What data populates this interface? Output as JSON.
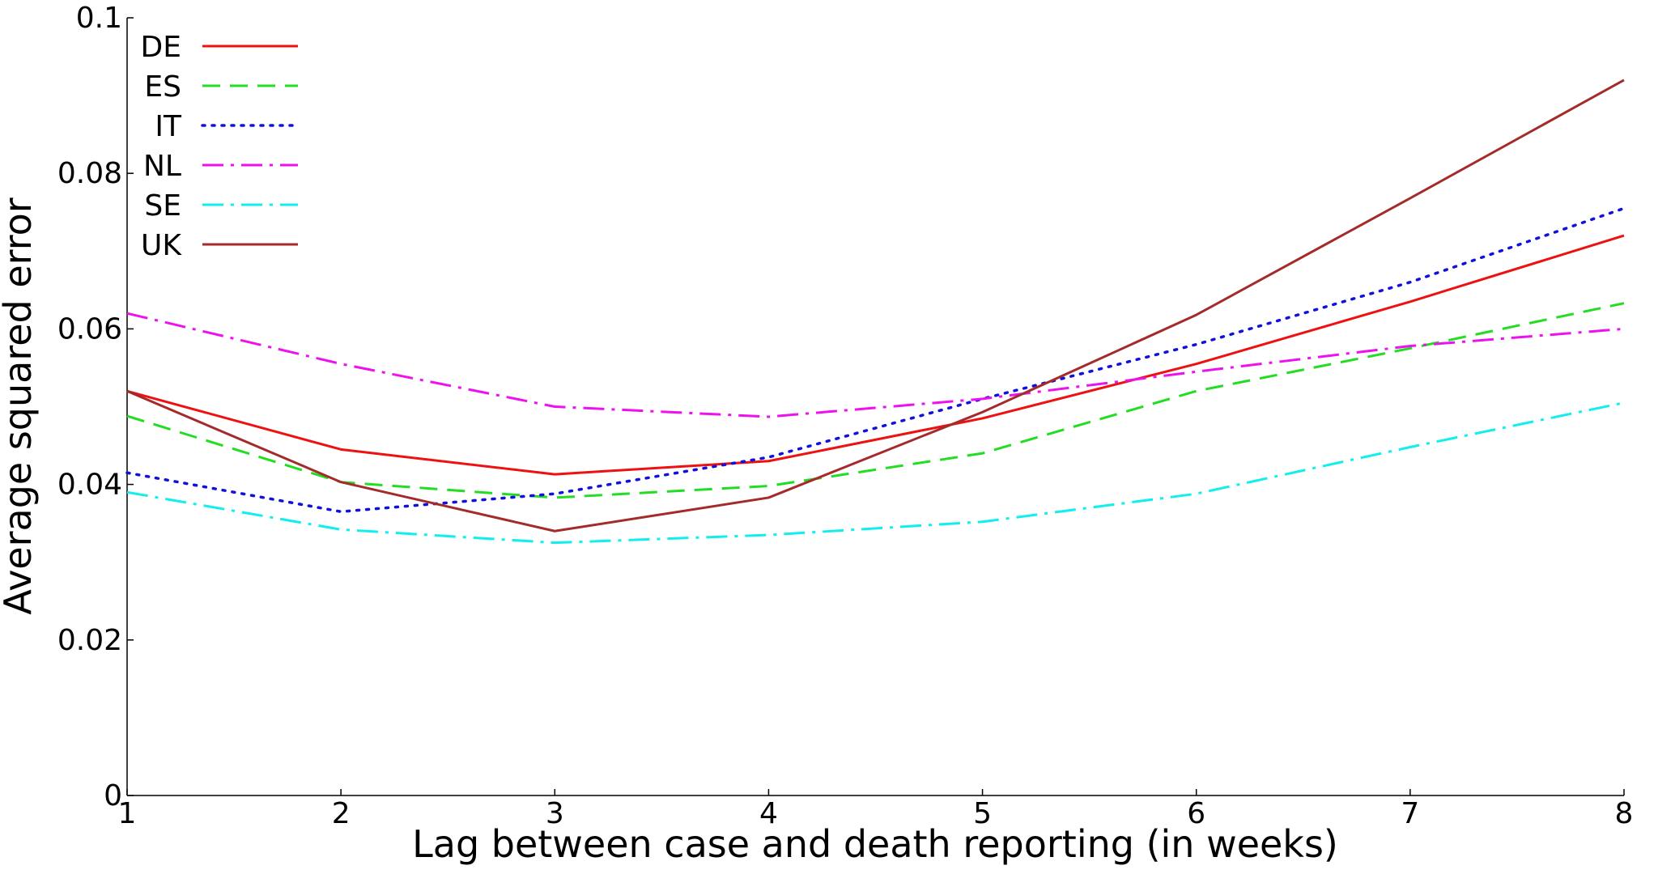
{
  "chart_data": {
    "type": "line",
    "title": "",
    "xlabel": "Lag between case and death reporting (in weeks)",
    "ylabel": "Average squared error",
    "xlim": [
      1,
      8
    ],
    "ylim": [
      0,
      0.1
    ],
    "x": [
      1,
      2,
      3,
      4,
      5,
      6,
      7,
      8
    ],
    "x_ticks": [
      1,
      2,
      3,
      4,
      5,
      6,
      7,
      8
    ],
    "x_tick_labels": [
      "1",
      "2",
      "3",
      "4",
      "5",
      "6",
      "7",
      "8"
    ],
    "y_ticks": [
      0,
      0.02,
      0.04,
      0.06,
      0.08,
      0.1
    ],
    "y_tick_labels": [
      "0",
      "0.02",
      "0.04",
      "0.06",
      "0.08",
      "0.1"
    ],
    "grid": false,
    "legend_position": "top-left",
    "series": [
      {
        "name": "DE",
        "color": "#ee1111",
        "style": "solid",
        "values": [
          0.052,
          0.0445,
          0.0413,
          0.043,
          0.0485,
          0.0555,
          0.0635,
          0.072
        ]
      },
      {
        "name": "ES",
        "color": "#22dd22",
        "style": "dashed",
        "values": [
          0.0488,
          0.0403,
          0.0383,
          0.0398,
          0.044,
          0.052,
          0.0575,
          0.0633
        ]
      },
      {
        "name": "IT",
        "color": "#1111dd",
        "style": "dotted",
        "values": [
          0.0415,
          0.0365,
          0.0388,
          0.0435,
          0.051,
          0.058,
          0.066,
          0.0755
        ]
      },
      {
        "name": "NL",
        "color": "#ee11ee",
        "style": "dashdot",
        "values": [
          0.062,
          0.0555,
          0.05,
          0.0487,
          0.051,
          0.0545,
          0.0578,
          0.06
        ]
      },
      {
        "name": "SE",
        "color": "#11eeee",
        "style": "dashdot",
        "values": [
          0.039,
          0.0342,
          0.0325,
          0.0335,
          0.0352,
          0.0388,
          0.0448,
          0.0505
        ]
      },
      {
        "name": "UK",
        "color": "#a52a2a",
        "style": "solid",
        "values": [
          0.052,
          0.0403,
          0.034,
          0.0383,
          0.0493,
          0.0618,
          0.0768,
          0.092
        ]
      }
    ]
  }
}
